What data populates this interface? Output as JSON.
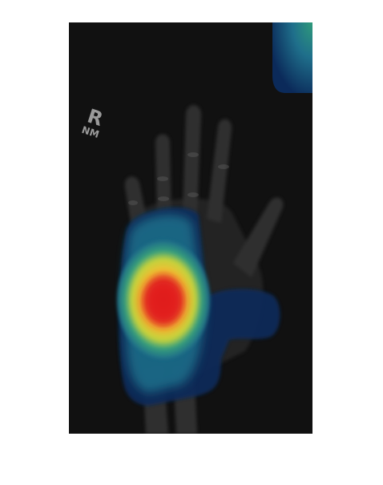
{
  "image": {
    "subject": "hand-radiograph-with-heatmap-overlay",
    "background_color": "#ffffff",
    "film_color": "#111111"
  },
  "marker": {
    "letter": "R",
    "initials": "NM"
  },
  "heatmap": {
    "colormap": [
      "#0b2a5a",
      "#1f6f8b",
      "#3aa37a",
      "#c8d63a",
      "#f7c331",
      "#e8402a",
      "#d81e1e"
    ],
    "peak_color": "#e21f1f"
  }
}
